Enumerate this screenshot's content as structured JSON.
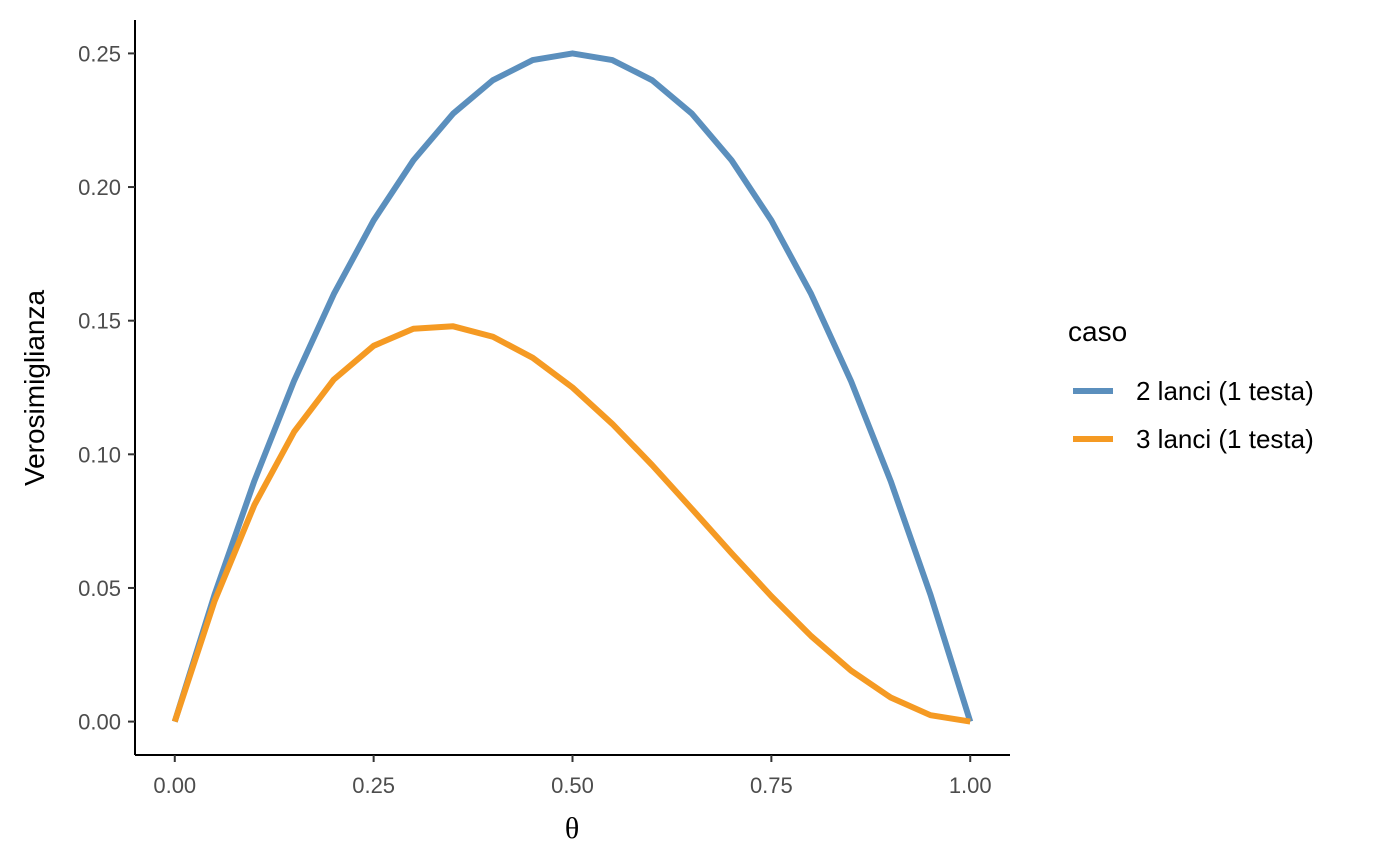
{
  "chart_data": {
    "type": "line",
    "xlabel": "θ",
    "ylabel": "Verosimiglianza",
    "xlim": [
      -0.05,
      1.05
    ],
    "ylim": [
      -0.0125,
      0.2625
    ],
    "x_ticks": [
      0,
      0.25,
      0.5,
      0.75,
      1
    ],
    "x_tick_labels": [
      "0.00",
      "0.25",
      "0.50",
      "0.75",
      "1.00"
    ],
    "y_ticks": [
      0,
      0.05,
      0.1,
      0.15,
      0.2,
      0.25
    ],
    "y_tick_labels": [
      "0.00",
      "0.05",
      "0.10",
      "0.15",
      "0.20",
      "0.25"
    ],
    "grid": false,
    "legend": {
      "title": "caso",
      "position": "right"
    },
    "x": [
      0,
      0.05,
      0.1,
      0.15,
      0.2,
      0.25,
      0.3,
      0.35,
      0.4,
      0.45,
      0.5,
      0.55,
      0.6,
      0.65,
      0.7,
      0.75,
      0.8,
      0.85,
      0.9,
      0.95,
      1
    ],
    "series": [
      {
        "name": "2 lanci (1 testa)",
        "color": "#5b8fbd",
        "values": [
          0,
          0.0475,
          0.09,
          0.1275,
          0.16,
          0.1875,
          0.21,
          0.2275,
          0.24,
          0.2475,
          0.25,
          0.2475,
          0.24,
          0.2275,
          0.21,
          0.1875,
          0.16,
          0.1275,
          0.09,
          0.0475,
          0
        ]
      },
      {
        "name": "3 lanci (1 testa)",
        "color": "#f59a23",
        "values": [
          0,
          0.0451,
          0.081,
          0.1084,
          0.128,
          0.1406,
          0.147,
          0.1479,
          0.144,
          0.1361,
          0.125,
          0.1114,
          0.096,
          0.0796,
          0.063,
          0.0469,
          0.032,
          0.0191,
          0.009,
          0.0024,
          0
        ]
      }
    ]
  }
}
